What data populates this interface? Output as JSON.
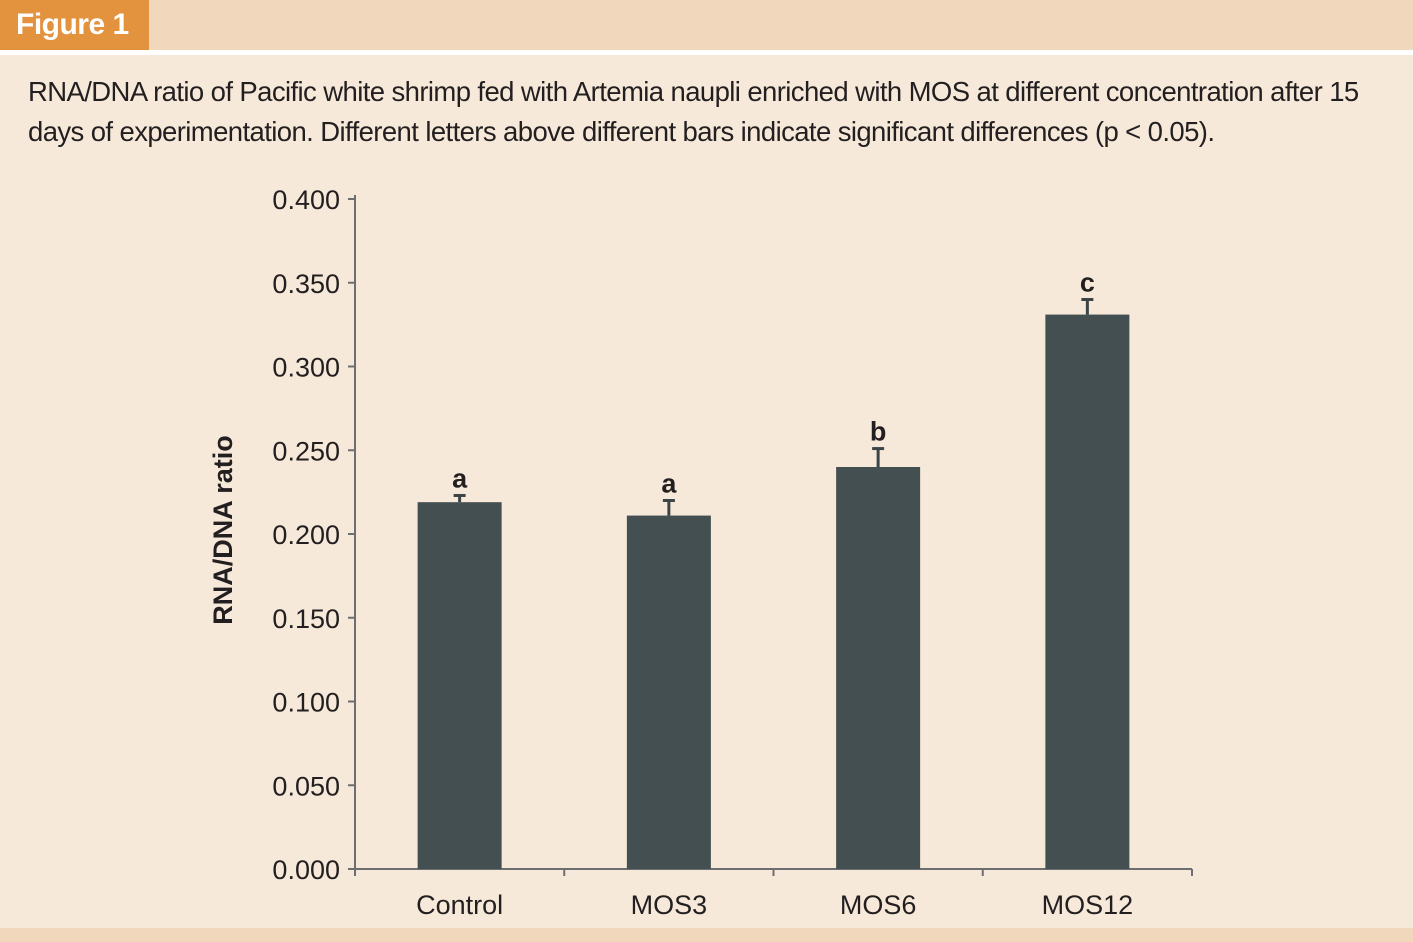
{
  "header": {
    "figure_label": "Figure 1"
  },
  "caption": "RNA/DNA ratio of Pacific white shrimp fed with Artemia naupli enriched with MOS at different concentration after 15 days of experimentation. Different letters above different bars indicate significant differences (p < 0.05).",
  "colors": {
    "background": "#f7e9da",
    "header": "#f1d7bb",
    "tab": "#e3923e",
    "bar": "#444f51",
    "axis": "#6d6e70"
  },
  "chart_data": {
    "type": "bar",
    "categories": [
      "Control",
      "MOS3",
      "MOS6",
      "MOS12"
    ],
    "values": [
      0.219,
      0.211,
      0.24,
      0.331
    ],
    "errors": [
      0.004,
      0.009,
      0.011,
      0.009
    ],
    "significance": [
      "a",
      "a",
      "b",
      "c"
    ],
    "title": "",
    "xlabel": "",
    "ylabel": "RNA/DNA ratio",
    "ylim": [
      0,
      0.4
    ],
    "yticks": [
      "0.000",
      "0.050",
      "0.100",
      "0.150",
      "0.200",
      "0.250",
      "0.300",
      "0.350",
      "0.400"
    ],
    "grid": false
  }
}
